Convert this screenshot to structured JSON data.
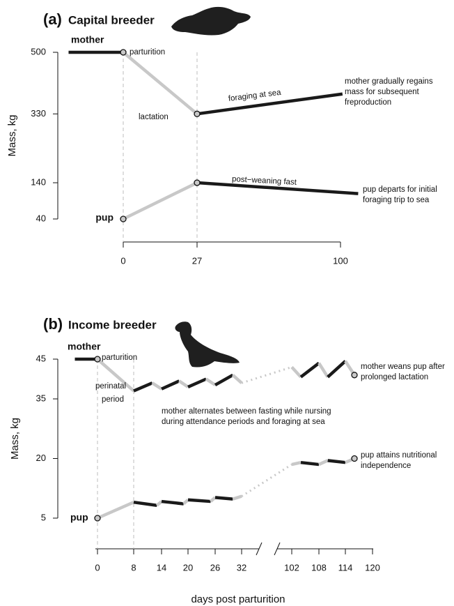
{
  "chart_data": [
    {
      "type": "line",
      "panel_label": "(a)",
      "title": "Capital breeder",
      "ylabel": "Mass, kg",
      "xlim": [
        0,
        100
      ],
      "xticks": [
        0,
        27,
        100
      ],
      "ylim": [
        40,
        500
      ],
      "yticks": [
        500,
        330,
        140,
        40
      ],
      "vlines": [
        0,
        27
      ],
      "series": [
        {
          "name": "mother",
          "x": [
            -20,
            0,
            27,
            101
          ],
          "values": [
            500,
            500,
            330,
            385
          ],
          "segment_colors": [
            "#1a1a1a",
            "#c8c8c8",
            "#1a1a1a"
          ],
          "markers": [
            1,
            2
          ]
        },
        {
          "name": "pup",
          "x": [
            0,
            27,
            109
          ],
          "values": [
            40,
            140,
            110
          ],
          "segment_colors": [
            "#c8c8c8",
            "#1a1a1a"
          ],
          "markers": [
            0,
            1
          ]
        }
      ],
      "annotations": [
        [
          "parturition"
        ],
        [
          "lactation"
        ],
        [
          "foraging at sea"
        ],
        [
          "mother gradually regains",
          "mass for subsequent",
          "freproduction"
        ],
        [
          "post−weaning fast"
        ],
        [
          "pup departs for initial",
          "foraging trip to sea"
        ]
      ]
    },
    {
      "type": "line",
      "panel_label": "(b)",
      "title": "Income breeder",
      "ylabel": "Mass, kg",
      "xlabel": "days post parturition",
      "xlim": [
        0,
        120
      ],
      "xticks": [
        0,
        8,
        14,
        20,
        26,
        32,
        102,
        108,
        114,
        120
      ],
      "ylim": [
        5,
        45
      ],
      "yticks": [
        45,
        35,
        20,
        5
      ],
      "vlines": [
        0,
        8
      ],
      "series": [
        {
          "name": "mother",
          "x": [
            -5,
            0,
            8,
            12,
            14,
            18,
            20,
            24,
            26,
            30,
            32,
            102,
            104,
            108,
            110,
            114,
            116
          ],
          "values": [
            45,
            45,
            37,
            39,
            37.5,
            39.5,
            38,
            40,
            38.5,
            41,
            39,
            43,
            40.5,
            44,
            40.5,
            44.5,
            41
          ],
          "segment_colors": [
            "#1a1a1a",
            "#c8c8c8",
            "#1a1a1a",
            "#c8c8c8",
            "#1a1a1a",
            "#c8c8c8",
            "#1a1a1a",
            "#c8c8c8",
            "#1a1a1a",
            "#c8c8c8",
            "#c8c8c8",
            "#c8c8c8",
            "#1a1a1a",
            "#c8c8c8",
            "#1a1a1a",
            "#c8c8c8"
          ],
          "segment_dotted": [
            10
          ],
          "markers": [
            1,
            16
          ]
        },
        {
          "name": "pup",
          "x": [
            0,
            8,
            13,
            14,
            19,
            20,
            25,
            26,
            30,
            32,
            102,
            104,
            108,
            110,
            114,
            116
          ],
          "values": [
            5,
            9,
            8.2,
            9.2,
            8.6,
            9.6,
            9.2,
            10.2,
            9.8,
            10.5,
            18.5,
            19,
            18.5,
            19.5,
            19,
            20
          ],
          "segment_colors": [
            "#c8c8c8",
            "#1a1a1a",
            "#c8c8c8",
            "#1a1a1a",
            "#c8c8c8",
            "#1a1a1a",
            "#c8c8c8",
            "#1a1a1a",
            "#c8c8c8",
            "#c8c8c8",
            "#c8c8c8",
            "#1a1a1a",
            "#c8c8c8",
            "#1a1a1a",
            "#c8c8c8"
          ],
          "segment_dotted": [
            9
          ],
          "markers": [
            0,
            15
          ]
        }
      ],
      "annotations": [
        [
          "parturition"
        ],
        [
          "perinatal",
          "period"
        ],
        [
          "mother alternates between fasting while nursing",
          "during attendance periods and foraging at sea"
        ],
        [
          "mother weans pup after",
          "prolonged lactation"
        ],
        [
          "pup attains nutritional",
          "independence"
        ]
      ]
    }
  ]
}
